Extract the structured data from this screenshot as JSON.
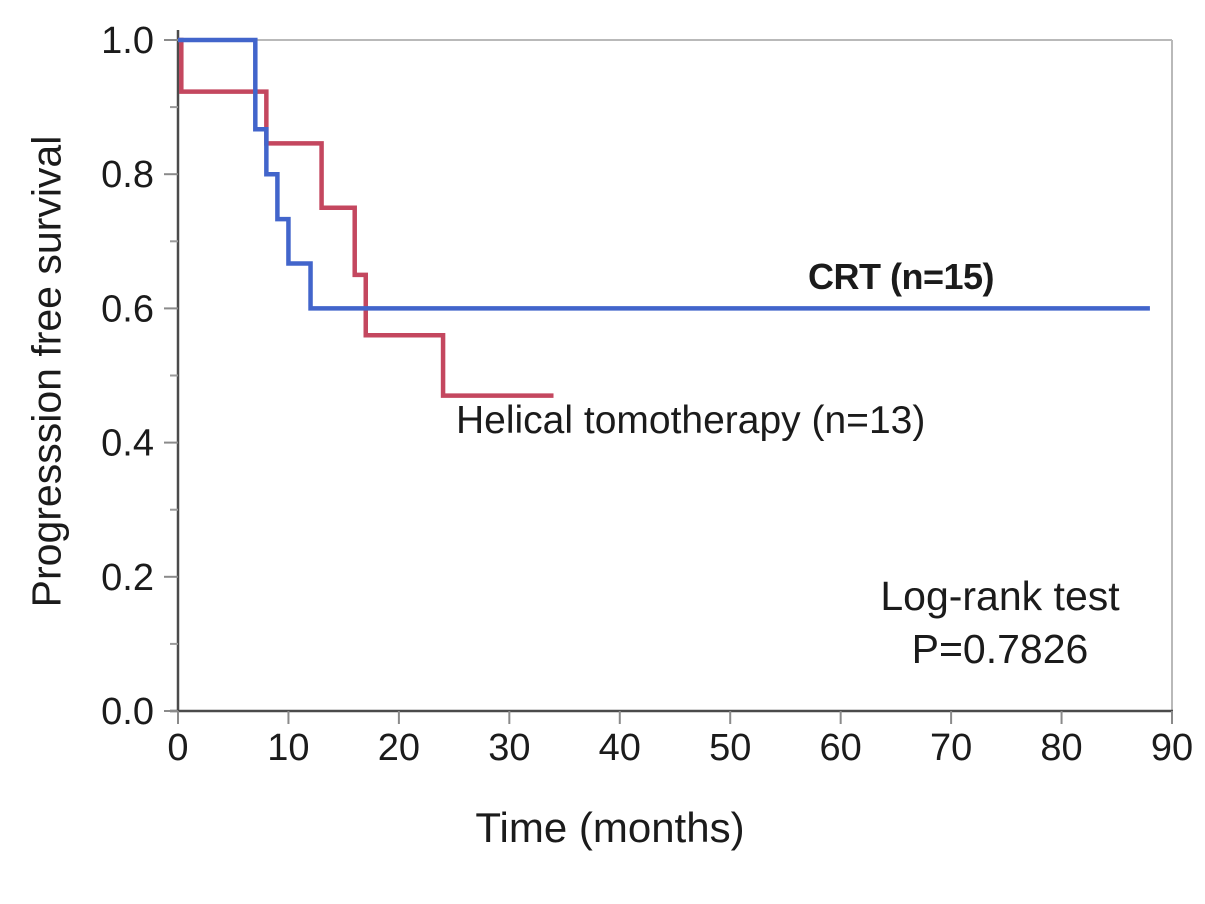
{
  "chart_data": {
    "type": "line",
    "subtype": "kaplan_meier_step",
    "title": "",
    "xlabel": "Time (months)",
    "ylabel": "Progresssion free survival",
    "xlim": [
      0,
      90
    ],
    "ylim": [
      0.0,
      1.0
    ],
    "x_ticks": [
      0,
      10,
      20,
      30,
      40,
      50,
      60,
      70,
      80,
      90
    ],
    "x_tick_labels": [
      "0",
      "10",
      "20",
      "30",
      "40",
      "50",
      "60",
      "70",
      "80",
      "90"
    ],
    "y_ticks": [
      1.0,
      0.8,
      0.6,
      0.4,
      0.2,
      0.0
    ],
    "y_tick_labels": [
      "1.0",
      "0.8",
      "0.6",
      "0.4",
      "0.2",
      "0.0"
    ],
    "y_minor_ticks": [
      0.9,
      0.7,
      0.5,
      0.3,
      0.1
    ],
    "grid": false,
    "frame": {
      "top_line": true,
      "right_line": true,
      "frame_color": "#b9b9b9"
    },
    "axis_color": "#4b4b4b",
    "tick_color": "#8a8a8a",
    "legend_position": "inline-labels",
    "series": [
      {
        "name": "CRT",
        "label": "CRT (n=15)",
        "n": 15,
        "color": "#4265cb",
        "steps": [
          [
            0,
            1.0
          ],
          [
            7,
            0.867
          ],
          [
            8,
            0.8
          ],
          [
            9,
            0.733
          ],
          [
            10,
            0.667
          ],
          [
            12,
            0.6
          ]
        ],
        "end_x": 88
      },
      {
        "name": "Helical tomotherapy",
        "label": "Helical tomotherapy (n=13)",
        "n": 13,
        "color": "#c4475f",
        "steps": [
          [
            0,
            1.0
          ],
          [
            0.3,
            0.923
          ],
          [
            8,
            0.846
          ],
          [
            13,
            0.75
          ],
          [
            16,
            0.65
          ],
          [
            17,
            0.56
          ],
          [
            24,
            0.47
          ]
        ],
        "end_x": 34
      }
    ],
    "annotations": {
      "logrank_line1": "Log-rank test",
      "logrank_line2": "P=0.7826"
    }
  }
}
